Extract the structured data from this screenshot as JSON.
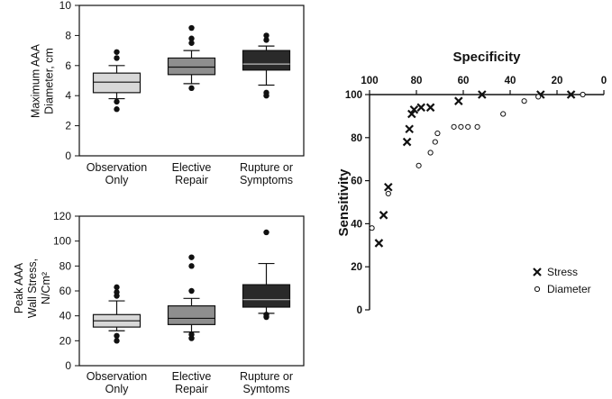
{
  "colors": {
    "observation": "#d8d8d8",
    "elective": "#8e8e8e",
    "rupture": "#2a2a2a",
    "ink": "#111111"
  },
  "chart_data": [
    {
      "type": "box",
      "ylabel": [
        "Maximum AAA",
        "Diameter, cm"
      ],
      "ylim": [
        0,
        10
      ],
      "yticks": [
        0,
        2,
        4,
        6,
        8,
        10
      ],
      "categories": [
        [
          "Observation",
          "Only"
        ],
        [
          "Elective",
          "Repair"
        ],
        [
          "Rupture or",
          "Symptoms"
        ]
      ],
      "boxes": [
        {
          "whisker_low": 3.8,
          "q1": 4.2,
          "median": 4.9,
          "q3": 5.5,
          "whisker_high": 6.0,
          "outliers": [
            6.9,
            6.5,
            3.6,
            3.1
          ]
        },
        {
          "whisker_low": 4.8,
          "q1": 5.4,
          "median": 5.9,
          "q3": 6.5,
          "whisker_high": 7.0,
          "outliers": [
            8.5,
            7.8,
            7.5,
            4.5
          ]
        },
        {
          "whisker_low": 4.7,
          "q1": 5.7,
          "median": 6.1,
          "q3": 7.0,
          "whisker_high": 7.3,
          "outliers": [
            8.0,
            7.7,
            4.2,
            4.0
          ]
        }
      ]
    },
    {
      "type": "box",
      "ylabel": [
        "Peak AAA",
        "Wall Stress,",
        "N/Cm²"
      ],
      "ylim": [
        0,
        120
      ],
      "yticks": [
        0,
        20,
        40,
        60,
        80,
        100,
        120
      ],
      "categories": [
        [
          "Observation",
          "Only"
        ],
        [
          "Elective",
          "Repair"
        ],
        [
          "Rupture or",
          "Symtoms"
        ]
      ],
      "boxes": [
        {
          "whisker_low": 28,
          "q1": 31,
          "median": 36,
          "q3": 41,
          "whisker_high": 52,
          "outliers": [
            63,
            59,
            56,
            24,
            20
          ]
        },
        {
          "whisker_low": 27,
          "q1": 33,
          "median": 38,
          "q3": 48,
          "whisker_high": 54,
          "outliers": [
            87,
            80,
            60,
            22,
            25
          ]
        },
        {
          "whisker_low": 42,
          "q1": 47,
          "median": 53,
          "q3": 65,
          "whisker_high": 82,
          "outliers": [
            107,
            41,
            39
          ]
        }
      ]
    },
    {
      "type": "scatter",
      "title": "Specificity",
      "ylabel": "Sensitivity",
      "xlim": [
        100,
        0
      ],
      "ylim": [
        0,
        100
      ],
      "xticks": [
        100,
        80,
        60,
        40,
        20,
        0
      ],
      "yticks": [
        0,
        20,
        40,
        60,
        80,
        100
      ],
      "legend_position": "bottom-right",
      "series": [
        {
          "name": "Stress",
          "marker": "x",
          "points": [
            [
              96,
              31
            ],
            [
              94,
              44
            ],
            [
              92,
              57
            ],
            [
              84,
              78
            ],
            [
              83,
              84
            ],
            [
              82,
              91
            ],
            [
              81,
              93
            ],
            [
              78,
              94
            ],
            [
              74,
              94
            ],
            [
              62,
              97
            ],
            [
              52,
              100
            ],
            [
              27,
              100
            ],
            [
              14,
              100
            ]
          ]
        },
        {
          "name": "Diameter",
          "marker": "o",
          "points": [
            [
              99,
              38
            ],
            [
              92,
              54
            ],
            [
              79,
              67
            ],
            [
              74,
              73
            ],
            [
              72,
              78
            ],
            [
              71,
              82
            ],
            [
              64,
              85
            ],
            [
              61,
              85
            ],
            [
              58,
              85
            ],
            [
              54,
              85
            ],
            [
              43,
              91
            ],
            [
              34,
              97
            ],
            [
              28,
              99
            ],
            [
              9,
              100
            ]
          ]
        }
      ]
    }
  ]
}
